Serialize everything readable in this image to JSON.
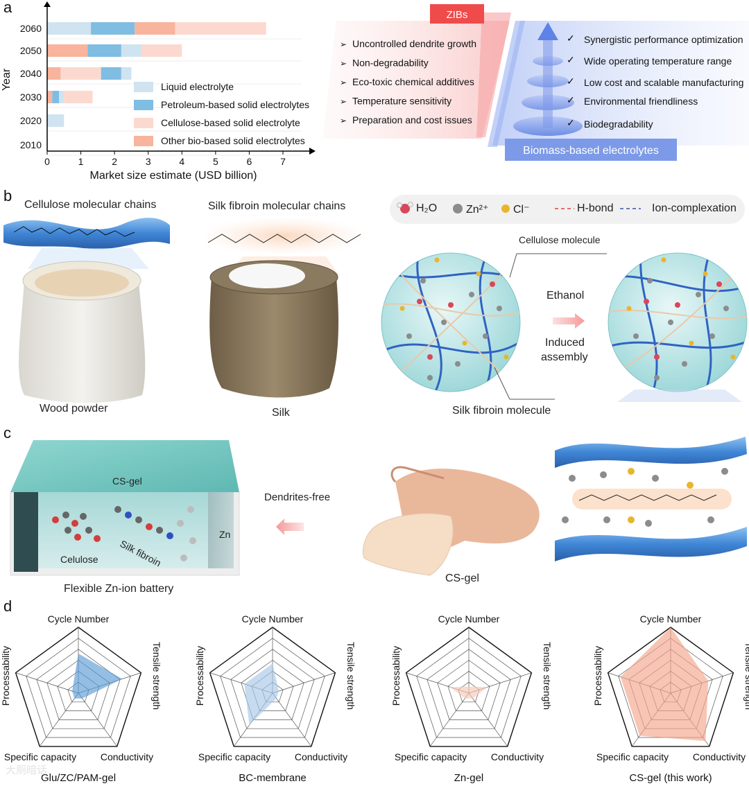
{
  "panel_labels": [
    "a",
    "b",
    "c",
    "d"
  ],
  "panel_a": {
    "chart_data": {
      "type": "bar",
      "orientation": "horizontal",
      "stacked": true,
      "ylabel": "Year",
      "xlabel": "Market size estimate (USD billion)",
      "categories": [
        "2060",
        "2050",
        "2040",
        "2030",
        "2020",
        "2010"
      ],
      "x_ticks": [
        "0",
        "1",
        "2",
        "3",
        "4",
        "5",
        "6",
        "7"
      ],
      "xlim": [
        0,
        7.5
      ],
      "series": [
        {
          "name": "Liquid electrolyte",
          "color": "#cfe3f0",
          "values": [
            1.3,
            0.6,
            0.3,
            0.15,
            0.5,
            0.02
          ]
        },
        {
          "name": "Petroleum-based solid electrolytes",
          "color": "#7fbde3",
          "values": [
            1.3,
            1.0,
            0.6,
            0.2,
            0.02,
            0
          ]
        },
        {
          "name": "Cellulose-based solid electrolyte",
          "color": "#fcd9cf",
          "values": [
            2.7,
            1.2,
            1.2,
            0.85,
            0,
            0
          ]
        },
        {
          "name": "Other bio-based solid electrolytes",
          "color": "#f8b49c",
          "values": [
            1.2,
            1.2,
            0.4,
            0.15,
            0,
            0
          ]
        }
      ],
      "segment_order": [
        [
          0,
          1,
          3,
          2
        ],
        [
          3,
          1,
          0,
          2
        ],
        [
          3,
          2,
          1,
          0
        ],
        [
          3,
          1,
          0,
          2
        ],
        [
          0
        ],
        [
          0
        ]
      ]
    },
    "zibs_title": "ZIBs",
    "zibs_issues": [
      "Uncontrolled dendrite growth",
      "Non-degradability",
      "Eco-toxic chemical additives",
      "Temperature sensitivity",
      "Preparation and cost issues"
    ],
    "biomass_title": "Biomass-based electrolytes",
    "biomass_benefits": [
      "Synergistic performance optimization",
      "Wide operating temperature range",
      "Low cost and scalable manufacturing",
      "Environmental friendliness",
      "Biodegradability"
    ]
  },
  "panel_b": {
    "cellulose_title": "Cellulose molecular chains",
    "silk_title": "Silk fibroin molecular chains",
    "wood_caption": "Wood powder",
    "silk_caption": "Silk",
    "legend": {
      "water": "H₂O",
      "zinc": "Zn²⁺",
      "chloride": "Cl⁻",
      "hbond": "H-bond",
      "ioncomp": "Ion-complexation"
    },
    "cellulose_molecule": "Cellulose molecule",
    "silk_molecule": "Silk fibroin molecule",
    "arrow_top": "Ethanol",
    "arrow_bottom_1": "Induced",
    "arrow_bottom_2": "assembly"
  },
  "panel_c": {
    "gel_label": "CS-gel",
    "zn_label": "Zn",
    "cellulose_label": "Celulose",
    "silk_label": "Silk fibroin",
    "battery_caption": "Flexible Zn-ion battery",
    "arrow_label": "Dendrites-free",
    "hand_caption": "CS-gel"
  },
  "panel_d": {
    "axes": [
      "Cycle Number",
      "Tensile strength",
      "Conductivity",
      "Specific capacity",
      "Processability"
    ],
    "charts": [
      {
        "name": "Glu/ZC/PAM-gel",
        "color": "#5b9bd5",
        "values": [
          0.6,
          0.7,
          0.1,
          0.1,
          0.1
        ]
      },
      {
        "name": "BC-membrane",
        "color": "#a9c8e8",
        "values": [
          0.45,
          0.1,
          0.1,
          0.6,
          0.45
        ]
      },
      {
        "name": "Zn-gel",
        "color": "#f6c9b6",
        "values": [
          0.1,
          0.3,
          0.1,
          0.1,
          0.3
        ]
      },
      {
        "name": "CS-gel (this work)",
        "color": "#f4a58a",
        "values": [
          1.0,
          0.6,
          0.9,
          0.8,
          0.8
        ]
      }
    ]
  },
  "watermark": "大厕暗话"
}
